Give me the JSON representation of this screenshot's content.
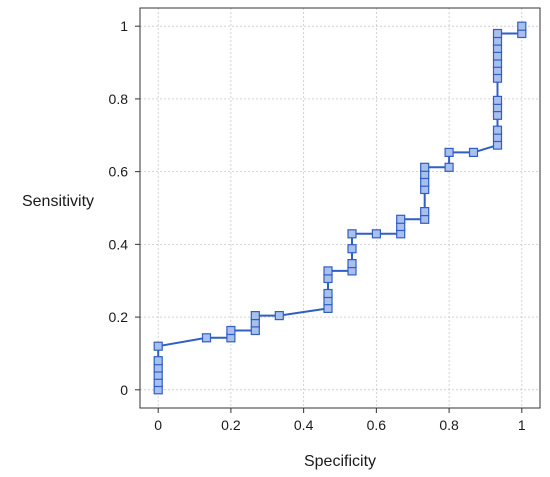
{
  "chart_data": {
    "type": "line",
    "xlabel": "Specificity",
    "ylabel": "Sensitivity",
    "xlim": [
      -0.05,
      1.05
    ],
    "ylim": [
      -0.05,
      1.05
    ],
    "x_ticks": [
      0,
      0.2,
      0.4,
      0.6,
      0.8,
      1
    ],
    "y_ticks": [
      0,
      0.2,
      0.4,
      0.6,
      0.8,
      1
    ],
    "x_tick_labels": [
      "0",
      "0.2",
      "0.4",
      "0.6",
      "0.8",
      "1"
    ],
    "y_tick_labels": [
      "0",
      "0.2",
      "0.4",
      "0.6",
      "0.8",
      "1"
    ],
    "grid": true,
    "line_color": "#2f5fc4",
    "marker_fill": "#a9c0ec",
    "marker_stroke": "#2f5fc4",
    "marker": "square",
    "series": [
      {
        "points": [
          [
            0,
            0
          ],
          [
            0,
            0.02
          ],
          [
            0,
            0.04
          ],
          [
            0,
            0.06
          ],
          [
            0,
            0.08
          ],
          [
            0,
            0.12
          ],
          [
            0.133,
            0.143
          ],
          [
            0.2,
            0.143
          ],
          [
            0.2,
            0.163
          ],
          [
            0.267,
            0.163
          ],
          [
            0.267,
            0.184
          ],
          [
            0.267,
            0.204
          ],
          [
            0.333,
            0.204
          ],
          [
            0.467,
            0.224
          ],
          [
            0.467,
            0.245
          ],
          [
            0.467,
            0.265
          ],
          [
            0.467,
            0.306
          ],
          [
            0.467,
            0.327
          ],
          [
            0.533,
            0.327
          ],
          [
            0.533,
            0.347
          ],
          [
            0.533,
            0.388
          ],
          [
            0.533,
            0.429
          ],
          [
            0.6,
            0.429
          ],
          [
            0.667,
            0.429
          ],
          [
            0.667,
            0.449
          ],
          [
            0.667,
            0.469
          ],
          [
            0.733,
            0.469
          ],
          [
            0.733,
            0.49
          ],
          [
            0.733,
            0.551
          ],
          [
            0.733,
            0.571
          ],
          [
            0.733,
            0.592
          ],
          [
            0.733,
            0.612
          ],
          [
            0.8,
            0.612
          ],
          [
            0.8,
            0.653
          ],
          [
            0.867,
            0.653
          ],
          [
            0.933,
            0.673
          ],
          [
            0.933,
            0.694
          ],
          [
            0.933,
            0.714
          ],
          [
            0.933,
            0.755
          ],
          [
            0.933,
            0.776
          ],
          [
            0.933,
            0.796
          ],
          [
            0.933,
            0.857
          ],
          [
            0.933,
            0.878
          ],
          [
            0.933,
            0.898
          ],
          [
            0.933,
            0.918
          ],
          [
            0.933,
            0.939
          ],
          [
            0.933,
            0.959
          ],
          [
            0.933,
            0.98
          ],
          [
            1,
            0.98
          ],
          [
            1,
            1.0
          ]
        ]
      }
    ]
  }
}
